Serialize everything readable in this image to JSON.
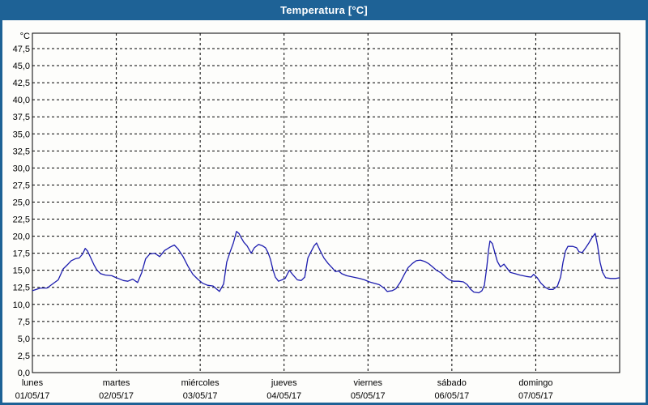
{
  "window": {
    "title": "Temperatura [°C]",
    "titlebar_color": "#1e6296",
    "border_color": "#1e6296",
    "canvas_background": "#fdfdfb"
  },
  "chart": {
    "unit_label": "°C",
    "line_color": "#1c1cae",
    "grid_color": "#000000",
    "y_tick_labels": [
      "0,0",
      "2,5",
      "5,0",
      "7,5",
      "10,0",
      "12,5",
      "15,0",
      "17,5",
      "20,0",
      "22,5",
      "25,0",
      "27,5",
      "30,0",
      "32,5",
      "35,0",
      "37,5",
      "40,0",
      "42,5",
      "45,0",
      "47,5"
    ],
    "days": [
      {
        "name": "lunes",
        "date": "01/05/17"
      },
      {
        "name": "martes",
        "date": "02/05/17"
      },
      {
        "name": "miércoles",
        "date": "03/05/17"
      },
      {
        "name": "jueves",
        "date": "04/05/17"
      },
      {
        "name": "viernes",
        "date": "05/05/17"
      },
      {
        "name": "sábado",
        "date": "06/05/17"
      },
      {
        "name": "domingo",
        "date": "07/05/17"
      }
    ]
  },
  "chart_data": {
    "type": "line",
    "title": "Temperatura [°C]",
    "ylabel": "°C",
    "ylim": [
      0,
      49.8
    ],
    "y_tick_step": 2.5,
    "x_unit": "hours since lunes 01/05/17 00:00",
    "x_range_hours": [
      0,
      168
    ],
    "grid": "dashed",
    "legend": "none",
    "series": [
      {
        "name": "Temperatura",
        "color": "#1c1cae",
        "points": [
          [
            0,
            12.0
          ],
          [
            2.3,
            12.4
          ],
          [
            4.2,
            12.4
          ],
          [
            5.8,
            13.0
          ],
          [
            7.4,
            13.6
          ],
          [
            8.8,
            15.2
          ],
          [
            10,
            15.8
          ],
          [
            11.1,
            16.4
          ],
          [
            12.3,
            16.7
          ],
          [
            13.4,
            16.8
          ],
          [
            14.4,
            17.4
          ],
          [
            15.1,
            18.2
          ],
          [
            15.8,
            17.8
          ],
          [
            16.7,
            16.8
          ],
          [
            17.6,
            15.8
          ],
          [
            18.5,
            15.0
          ],
          [
            19.5,
            14.5
          ],
          [
            20.9,
            14.3
          ],
          [
            22.7,
            14.2
          ],
          [
            23.6,
            14.0
          ],
          [
            24.6,
            13.8
          ],
          [
            26,
            13.5
          ],
          [
            27.3,
            13.4
          ],
          [
            28.7,
            13.7
          ],
          [
            30.1,
            13.2
          ],
          [
            31.3,
            14.7
          ],
          [
            32.4,
            16.7
          ],
          [
            33.6,
            17.4
          ],
          [
            35,
            17.5
          ],
          [
            36.4,
            17.0
          ],
          [
            37.8,
            17.9
          ],
          [
            39.4,
            18.4
          ],
          [
            40.6,
            18.7
          ],
          [
            41.7,
            18.1
          ],
          [
            43.1,
            17.0
          ],
          [
            44.5,
            15.6
          ],
          [
            45.9,
            14.4
          ],
          [
            47.3,
            13.7
          ],
          [
            48.7,
            13.1
          ],
          [
            50.1,
            12.8
          ],
          [
            51.7,
            12.7
          ],
          [
            52.8,
            12.2
          ],
          [
            53.5,
            11.9
          ],
          [
            54.7,
            13.0
          ],
          [
            55.6,
            16.2
          ],
          [
            56.5,
            17.6
          ],
          [
            57.5,
            19.0
          ],
          [
            58.4,
            20.7
          ],
          [
            59.1,
            20.4
          ],
          [
            59.6,
            19.9
          ],
          [
            60.5,
            19.1
          ],
          [
            61.4,
            18.6
          ],
          [
            62.6,
            17.5
          ],
          [
            63.5,
            18.3
          ],
          [
            64.7,
            18.8
          ],
          [
            65.8,
            18.6
          ],
          [
            66.7,
            18.3
          ],
          [
            67.4,
            17.6
          ],
          [
            68.1,
            16.6
          ],
          [
            68.8,
            15.1
          ],
          [
            69.5,
            14.0
          ],
          [
            70.4,
            13.4
          ],
          [
            71.4,
            13.6
          ],
          [
            72.3,
            13.8
          ],
          [
            73.5,
            15.0
          ],
          [
            74.6,
            14.3
          ],
          [
            75.8,
            13.6
          ],
          [
            76.9,
            13.5
          ],
          [
            77.9,
            14.0
          ],
          [
            78.8,
            16.8
          ],
          [
            79.7,
            17.7
          ],
          [
            80.6,
            18.6
          ],
          [
            81.3,
            19.0
          ],
          [
            82.3,
            17.9
          ],
          [
            83.4,
            16.8
          ],
          [
            84.6,
            16.0
          ],
          [
            85.7,
            15.4
          ],
          [
            86.7,
            14.8
          ],
          [
            87.6,
            14.9
          ],
          [
            88.5,
            14.5
          ],
          [
            89.9,
            14.2
          ],
          [
            91.8,
            14.0
          ],
          [
            93.6,
            13.8
          ],
          [
            95,
            13.6
          ],
          [
            96.4,
            13.3
          ],
          [
            97.8,
            13.1
          ],
          [
            99.2,
            12.9
          ],
          [
            100.6,
            12.4
          ],
          [
            101.5,
            11.9
          ],
          [
            102.9,
            12.0
          ],
          [
            104,
            12.3
          ],
          [
            105.2,
            13.2
          ],
          [
            106.4,
            14.4
          ],
          [
            107.5,
            15.4
          ],
          [
            108.7,
            16.0
          ],
          [
            109.8,
            16.4
          ],
          [
            111,
            16.5
          ],
          [
            112.2,
            16.3
          ],
          [
            113.3,
            16.0
          ],
          [
            114.5,
            15.5
          ],
          [
            115.6,
            15.0
          ],
          [
            117,
            14.6
          ],
          [
            118.2,
            14.0
          ],
          [
            119.3,
            13.6
          ],
          [
            120.5,
            13.4
          ],
          [
            121.9,
            13.4
          ],
          [
            123.3,
            13.3
          ],
          [
            124.4,
            12.9
          ],
          [
            125.4,
            12.2
          ],
          [
            126.3,
            11.8
          ],
          [
            127.7,
            11.7
          ],
          [
            128.6,
            12.0
          ],
          [
            129.3,
            12.8
          ],
          [
            130,
            15.5
          ],
          [
            130.5,
            18.0
          ],
          [
            130.9,
            19.3
          ],
          [
            131.6,
            18.9
          ],
          [
            132.3,
            17.6
          ],
          [
            133,
            16.3
          ],
          [
            133.9,
            15.5
          ],
          [
            134.9,
            15.9
          ],
          [
            135.8,
            15.3
          ],
          [
            136.7,
            14.7
          ],
          [
            138.1,
            14.5
          ],
          [
            139.5,
            14.3
          ],
          [
            141.3,
            14.1
          ],
          [
            142.7,
            14.0
          ],
          [
            143.4,
            14.4
          ],
          [
            144.4,
            13.9
          ],
          [
            145.5,
            13.1
          ],
          [
            146.7,
            12.5
          ],
          [
            147.8,
            12.2
          ],
          [
            149,
            12.2
          ],
          [
            150.2,
            12.7
          ],
          [
            151.1,
            14.0
          ],
          [
            151.8,
            16.2
          ],
          [
            152.5,
            17.8
          ],
          [
            153.2,
            18.5
          ],
          [
            154.6,
            18.5
          ],
          [
            155.7,
            18.3
          ],
          [
            156.4,
            17.7
          ],
          [
            157.3,
            17.6
          ],
          [
            158.3,
            18.3
          ],
          [
            159.2,
            19.0
          ],
          [
            160.1,
            19.8
          ],
          [
            161,
            20.4
          ],
          [
            161.7,
            18.6
          ],
          [
            162.4,
            16.2
          ],
          [
            163.1,
            14.7
          ],
          [
            164,
            13.9
          ],
          [
            165.4,
            13.8
          ],
          [
            166.8,
            13.8
          ],
          [
            168,
            13.9
          ]
        ]
      }
    ]
  }
}
